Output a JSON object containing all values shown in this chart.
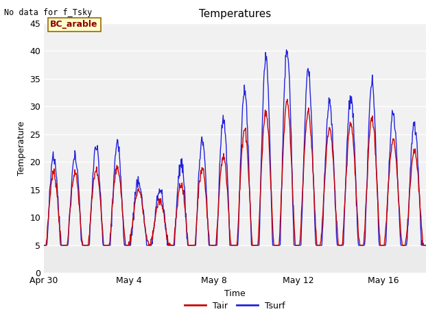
{
  "title": "Temperatures",
  "xlabel": "Time",
  "ylabel": "Temperature",
  "top_left_text": "No data for f_Tsky",
  "annotation_box": "BC_arable",
  "ylim": [
    0,
    45
  ],
  "yticks": [
    0,
    5,
    10,
    15,
    20,
    25,
    30,
    35,
    40,
    45
  ],
  "xtick_labels": [
    "Apr 30",
    "May 4",
    "May 8",
    "May 12",
    "May 16"
  ],
  "xtick_positions": [
    0,
    4,
    8,
    12,
    16
  ],
  "xlim": [
    0,
    18
  ],
  "plot_bg_color": "#ebebeb",
  "tair_color": "#cc0000",
  "tsurf_color": "#2222dd",
  "legend_labels": [
    "Tair",
    "Tsurf"
  ],
  "figsize": [
    6.4,
    4.8
  ],
  "dpi": 100,
  "day_bases": [
    10,
    10,
    10.5,
    11,
    10,
    9,
    9,
    10,
    11,
    13,
    15,
    16,
    16,
    15,
    15,
    15,
    14,
    13
  ],
  "day_amp_air": [
    8,
    8,
    8,
    8,
    5,
    4,
    7,
    9,
    10,
    13,
    14,
    15,
    13,
    11,
    12,
    13,
    10,
    9
  ],
  "day_amp_surf": [
    11,
    11,
    12,
    12,
    7,
    6,
    11,
    14,
    17,
    20,
    24,
    24,
    20,
    16,
    17,
    19,
    15,
    14
  ]
}
